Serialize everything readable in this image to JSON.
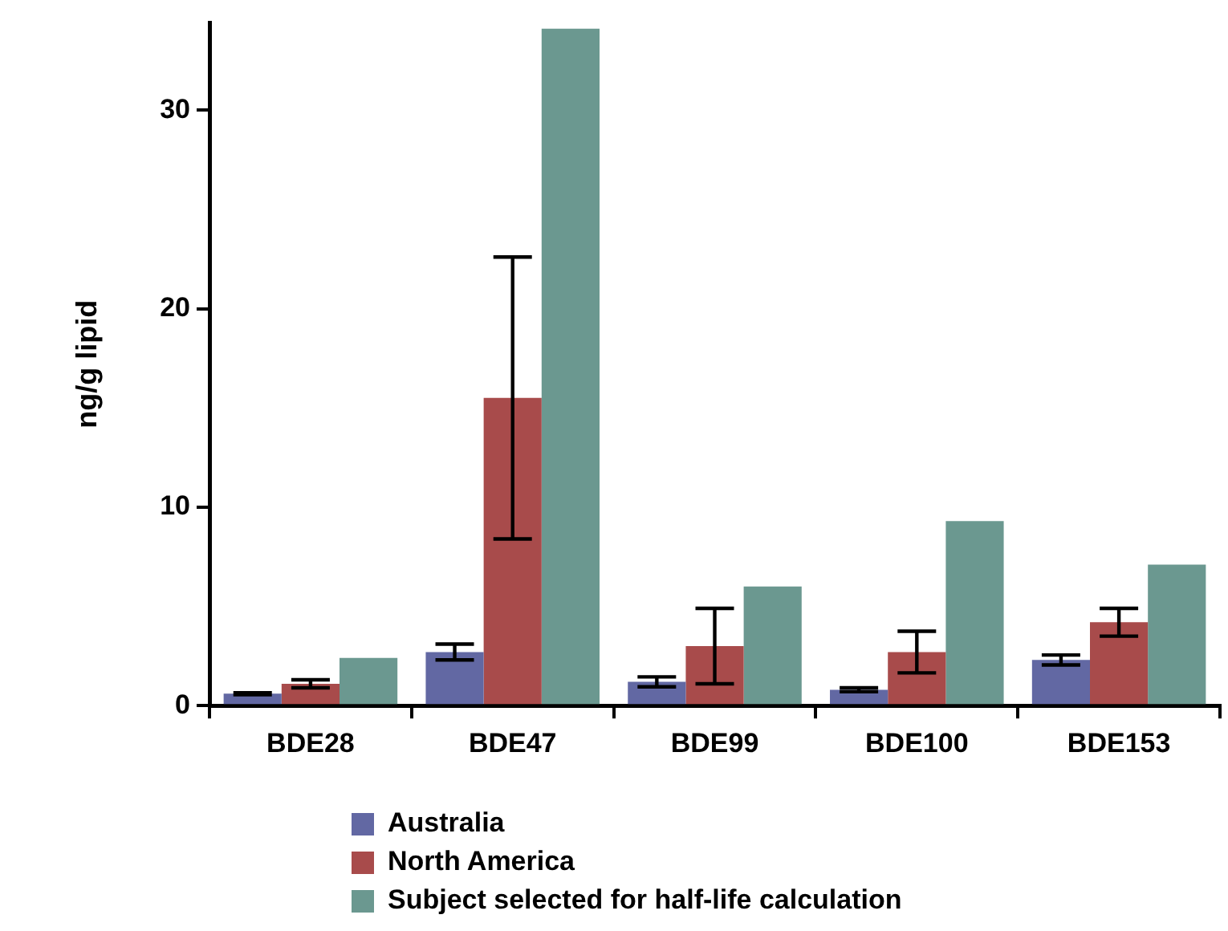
{
  "chart_data": {
    "type": "bar",
    "ylabel": "ng/g lipid",
    "categories": [
      "BDE28",
      "BDE47",
      "BDE99",
      "BDE100",
      "BDE153"
    ],
    "series": [
      {
        "name": "Australia",
        "color": "#6268a3",
        "values": [
          0.6,
          2.7,
          1.2,
          0.8,
          2.3
        ],
        "errors": [
          0.05,
          0.4,
          0.25,
          0.1,
          0.25
        ]
      },
      {
        "name": "North America",
        "color": "#a84b4b",
        "values": [
          1.1,
          15.5,
          3,
          2.7,
          4.2
        ],
        "errors": [
          0.2,
          7.1,
          1.9,
          1.05,
          0.7
        ]
      },
      {
        "name": "Subject selected for half-life calculation",
        "color": "#6b9890",
        "values": [
          2.4,
          34.1,
          6,
          9.3,
          7.1
        ]
      }
    ],
    "ylim": [
      0,
      34.4
    ],
    "yticks": [
      0,
      10,
      20,
      30
    ],
    "grid": false,
    "legend": "bottom"
  }
}
